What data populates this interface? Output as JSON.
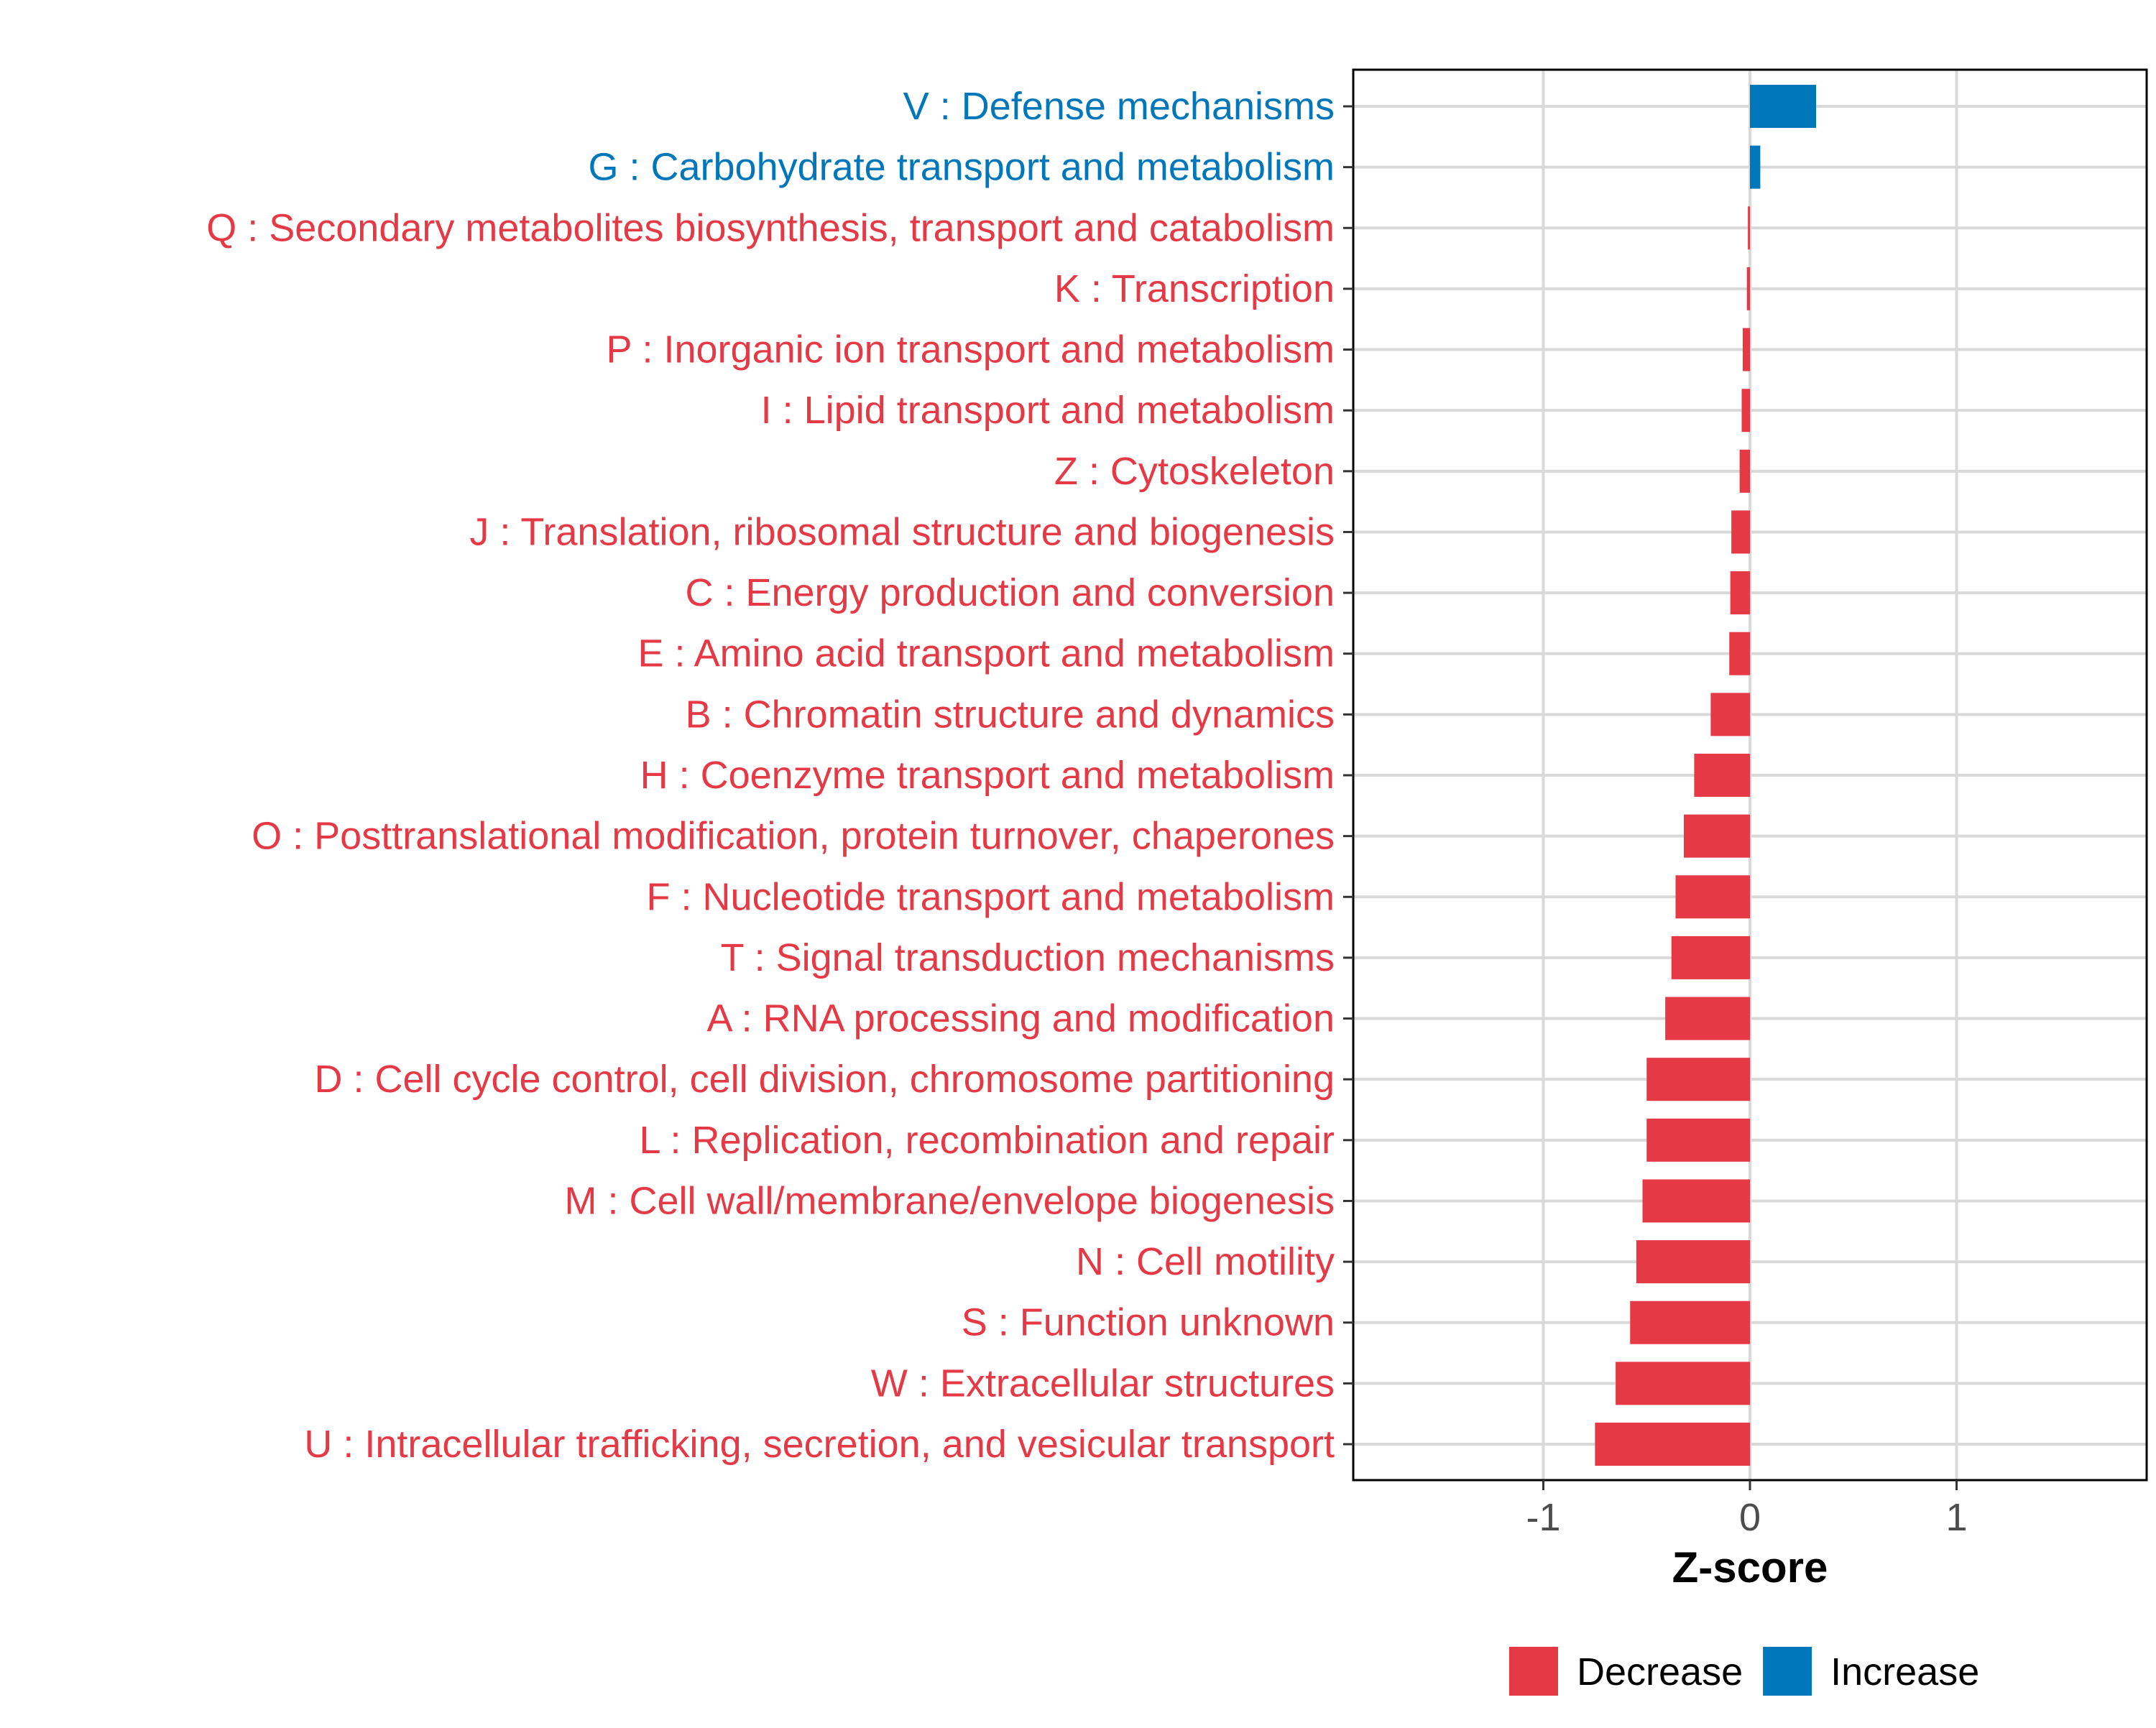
{
  "chart_data": {
    "type": "bar",
    "orientation": "horizontal",
    "xlabel": "Z-score",
    "ylabel": "",
    "xlim": [
      -1.92,
      1.92
    ],
    "x_ticks": [
      "-1",
      "0",
      "1"
    ],
    "x_tick_values": [
      -1,
      0,
      1
    ],
    "grid": true,
    "legend_position": "bottom",
    "colors": {
      "Decrease": "#E63946",
      "Increase": "#0077BB"
    },
    "legend": [
      {
        "label": "Decrease",
        "color": "#E63946"
      },
      {
        "label": "Increase",
        "color": "#0077BB"
      }
    ],
    "categories": [
      "V : Defense mechanisms",
      "G : Carbohydrate transport and metabolism",
      "Q : Secondary metabolites biosynthesis, transport and catabolism",
      "K : Transcription",
      "P : Inorganic ion transport and metabolism",
      "I : Lipid transport and metabolism",
      "Z : Cytoskeleton",
      "J : Translation, ribosomal structure and biogenesis",
      "C : Energy production and conversion",
      "E : Amino acid transport and metabolism",
      "B : Chromatin structure and dynamics",
      "H : Coenzyme transport and metabolism",
      "O : Posttranslational modification, protein turnover, chaperones",
      "F : Nucleotide transport and metabolism",
      "T : Signal transduction mechanisms",
      "A : RNA processing and modification",
      "D : Cell cycle control, cell division, chromosome partitioning",
      "L : Replication, recombination and repair",
      "M : Cell wall/membrane/envelope biogenesis",
      "N : Cell motility",
      "S : Function unknown",
      "W : Extracellular structures",
      "U : Intracellular trafficking, secretion, and vesicular transport"
    ],
    "values": [
      0.32,
      0.05,
      -0.01,
      -0.015,
      -0.035,
      -0.04,
      -0.05,
      -0.09,
      -0.095,
      -0.1,
      -0.19,
      -0.27,
      -0.32,
      -0.36,
      -0.38,
      -0.41,
      -0.5,
      -0.5,
      -0.52,
      -0.55,
      -0.58,
      -0.65,
      -0.75
    ],
    "direction": [
      "Increase",
      "Increase",
      "Decrease",
      "Decrease",
      "Decrease",
      "Decrease",
      "Decrease",
      "Decrease",
      "Decrease",
      "Decrease",
      "Decrease",
      "Decrease",
      "Decrease",
      "Decrease",
      "Decrease",
      "Decrease",
      "Decrease",
      "Decrease",
      "Decrease",
      "Decrease",
      "Decrease",
      "Decrease",
      "Decrease"
    ]
  }
}
